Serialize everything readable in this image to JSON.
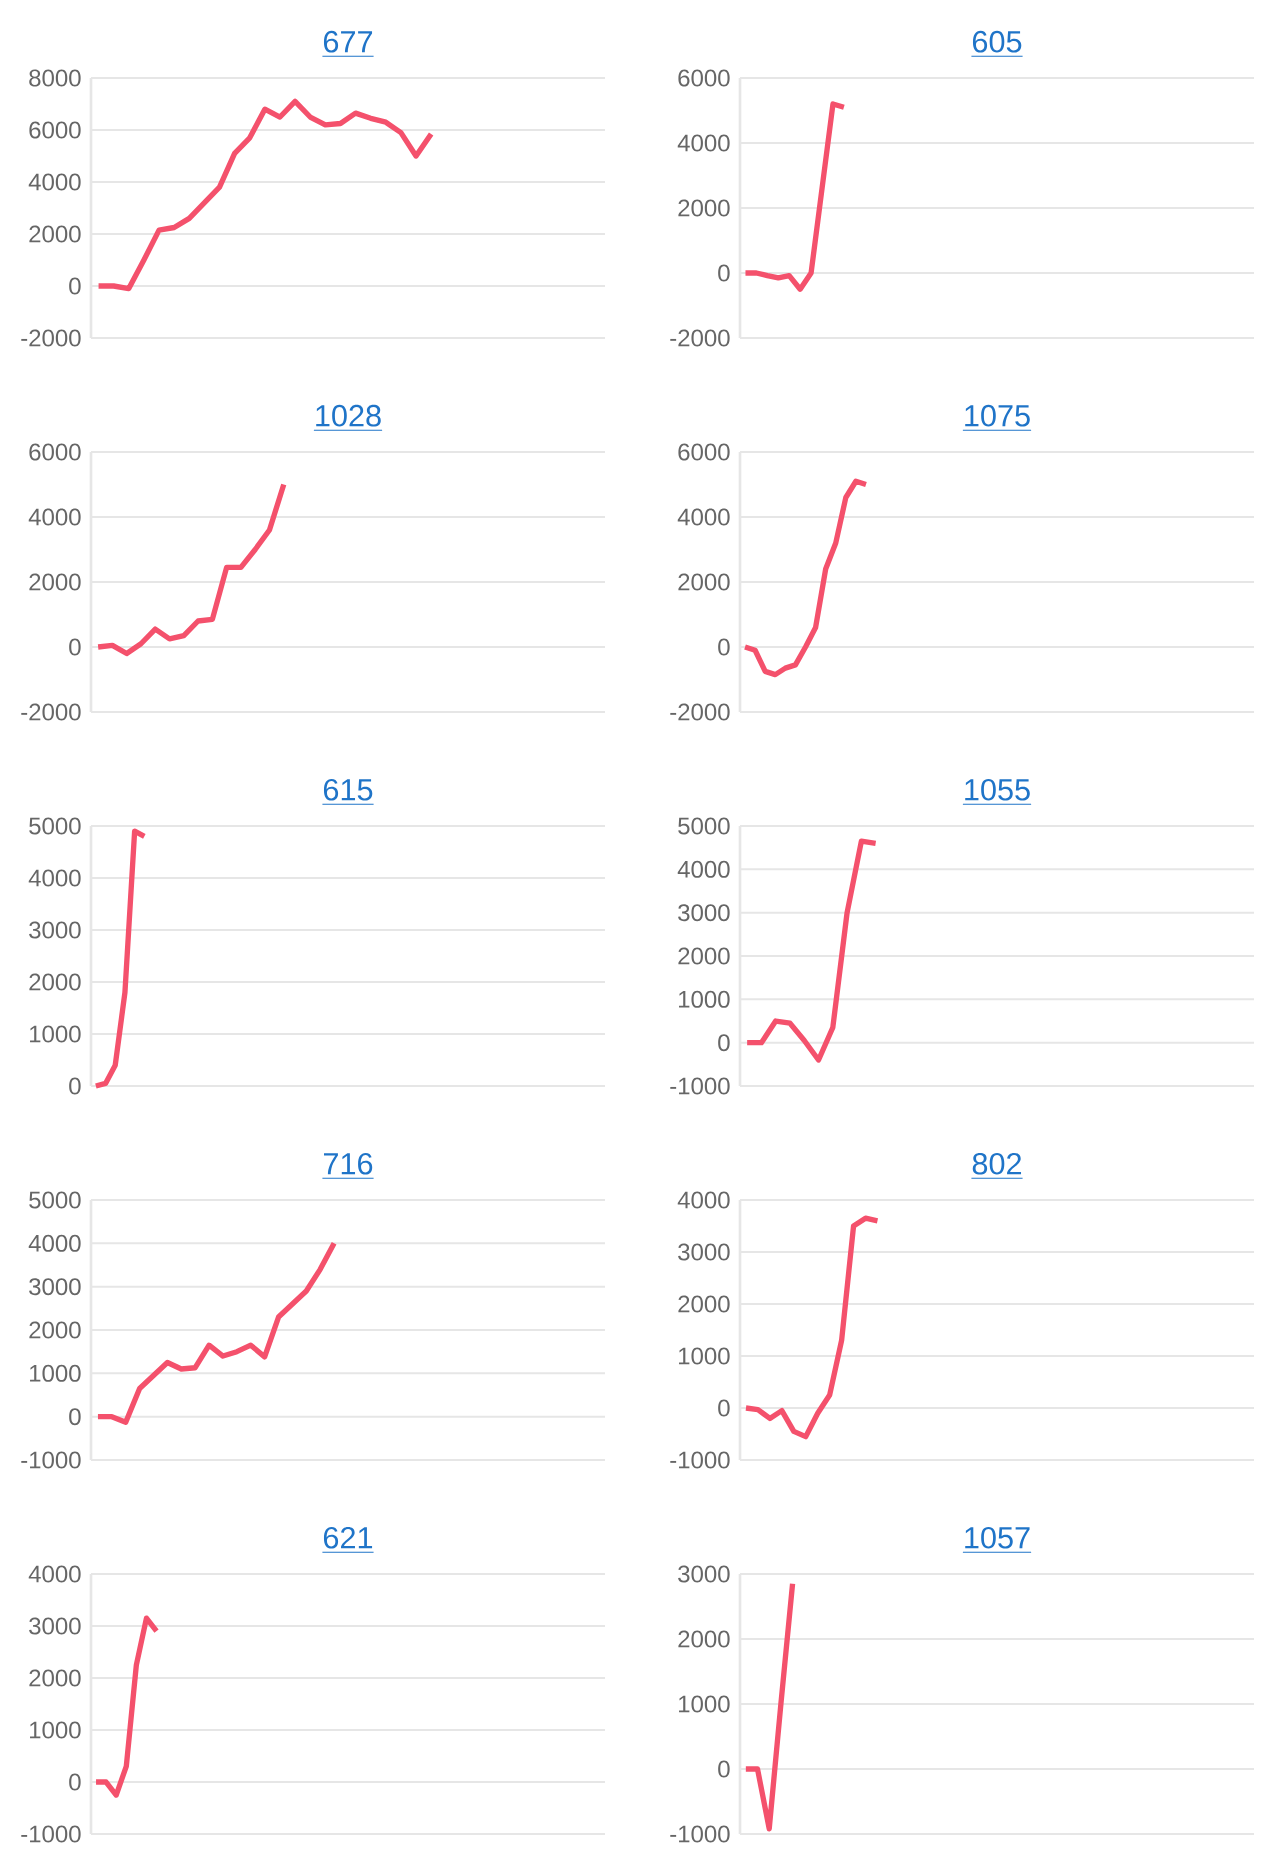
{
  "chart_data": [
    {
      "type": "line",
      "title": "677",
      "categories": [
        null,
        null,
        null,
        null,
        null,
        null,
        null,
        null,
        null,
        null,
        null,
        null,
        null,
        null,
        null,
        null,
        null,
        null,
        null,
        null,
        null,
        null,
        null,
        null,
        null,
        null,
        null,
        null,
        null,
        null,
        null,
        null,
        null,
        null
      ],
      "values": [
        0,
        0,
        -100,
        1000,
        2150,
        2250,
        2600,
        3200,
        3800,
        5100,
        5700,
        6800,
        6500,
        7100,
        6500,
        6200,
        6250,
        6650,
        6450,
        6300,
        5900,
        5000,
        5850,
        null,
        null,
        null,
        null,
        null,
        null,
        null,
        null,
        null,
        null,
        null
      ],
      "color": "#f4516c",
      "ylim": [
        -2000,
        8000
      ],
      "yticks": [
        -2000,
        0,
        2000,
        4000,
        6000,
        8000
      ],
      "grid": "y",
      "tick_labels": "y"
    },
    {
      "type": "line",
      "title": "605",
      "categories": [
        null,
        null,
        null,
        null,
        null,
        null,
        null,
        null,
        null,
        null,
        null,
        null,
        null,
        null,
        null,
        null,
        null,
        null,
        null,
        null,
        null,
        null,
        null,
        null,
        null,
        null,
        null,
        null,
        null,
        null,
        null,
        null,
        null,
        null,
        null,
        null,
        null,
        null,
        null,
        null,
        null,
        null,
        null,
        null,
        null,
        null,
        null
      ],
      "values": [
        0,
        0,
        -80,
        -150,
        -80,
        -500,
        0,
        2600,
        5200,
        5100,
        null,
        null,
        null,
        null,
        null,
        null,
        null,
        null,
        null,
        null,
        null,
        null,
        null,
        null,
        null,
        null,
        null,
        null,
        null,
        null,
        null,
        null,
        null,
        null,
        null,
        null,
        null,
        null,
        null,
        null,
        null,
        null,
        null,
        null,
        null,
        null,
        null
      ],
      "color": "#f4516c",
      "ylim": [
        -2000,
        6000
      ],
      "yticks": [
        -2000,
        0,
        2000,
        4000,
        6000
      ],
      "grid": "y",
      "tick_labels": "y"
    },
    {
      "type": "line",
      "title": "1028",
      "categories": [
        null,
        null,
        null,
        null,
        null,
        null,
        null,
        null,
        null,
        null,
        null,
        null,
        null,
        null,
        null,
        null,
        null,
        null,
        null,
        null,
        null,
        null,
        null,
        null,
        null,
        null,
        null,
        null,
        null,
        null,
        null,
        null,
        null,
        null,
        null,
        null
      ],
      "values": [
        0,
        50,
        -200,
        100,
        550,
        250,
        350,
        800,
        850,
        2450,
        2450,
        3000,
        3600,
        5000,
        null,
        null,
        null,
        null,
        null,
        null,
        null,
        null,
        null,
        null,
        null,
        null,
        null,
        null,
        null,
        null,
        null,
        null,
        null,
        null,
        null,
        null
      ],
      "color": "#f4516c",
      "ylim": [
        -2000,
        6000
      ],
      "yticks": [
        -2000,
        0,
        2000,
        4000,
        6000
      ],
      "grid": "y",
      "tick_labels": "y"
    },
    {
      "type": "line",
      "title": "1075",
      "categories": [
        null,
        null,
        null,
        null,
        null,
        null,
        null,
        null,
        null,
        null,
        null,
        null,
        null,
        null,
        null,
        null,
        null,
        null,
        null,
        null,
        null,
        null,
        null,
        null,
        null,
        null,
        null,
        null,
        null,
        null,
        null,
        null,
        null,
        null,
        null,
        null,
        null,
        null,
        null,
        null,
        null,
        null,
        null,
        null,
        null,
        null,
        null,
        null,
        null,
        null,
        null
      ],
      "values": [
        0,
        -100,
        -750,
        -850,
        -650,
        -550,
        0,
        600,
        2400,
        3200,
        4600,
        5100,
        5000,
        null,
        null,
        null,
        null,
        null,
        null,
        null,
        null,
        null,
        null,
        null,
        null,
        null,
        null,
        null,
        null,
        null,
        null,
        null,
        null,
        null,
        null,
        null,
        null,
        null,
        null,
        null,
        null,
        null,
        null,
        null,
        null,
        null,
        null,
        null,
        null,
        null,
        null
      ],
      "color": "#f4516c",
      "ylim": [
        -2000,
        6000
      ],
      "yticks": [
        -2000,
        0,
        2000,
        4000,
        6000
      ],
      "grid": "y",
      "tick_labels": "y"
    },
    {
      "type": "line",
      "title": "615",
      "categories": [
        null,
        null,
        null,
        null,
        null,
        null,
        null,
        null,
        null,
        null,
        null,
        null,
        null,
        null,
        null,
        null,
        null,
        null,
        null,
        null,
        null,
        null,
        null,
        null,
        null,
        null,
        null,
        null,
        null,
        null,
        null,
        null,
        null,
        null,
        null,
        null,
        null,
        null,
        null,
        null,
        null,
        null,
        null,
        null,
        null,
        null,
        null,
        null,
        null,
        null,
        null,
        null,
        null
      ],
      "values": [
        0,
        50,
        400,
        1800,
        4900,
        4800,
        null,
        null,
        null,
        null,
        null,
        null,
        null,
        null,
        null,
        null,
        null,
        null,
        null,
        null,
        null,
        null,
        null,
        null,
        null,
        null,
        null,
        null,
        null,
        null,
        null,
        null,
        null,
        null,
        null,
        null,
        null,
        null,
        null,
        null,
        null,
        null,
        null,
        null,
        null,
        null,
        null,
        null,
        null,
        null,
        null,
        null,
        null
      ],
      "color": "#f4516c",
      "ylim": [
        0,
        5000
      ],
      "yticks": [
        0,
        1000,
        2000,
        3000,
        4000,
        5000
      ],
      "grid": "y",
      "tick_labels": "y"
    },
    {
      "type": "line",
      "title": "1055",
      "categories": [
        null,
        null,
        null,
        null,
        null,
        null,
        null,
        null,
        null,
        null,
        null,
        null,
        null,
        null,
        null,
        null,
        null,
        null,
        null,
        null,
        null,
        null,
        null,
        null,
        null,
        null,
        null,
        null,
        null,
        null,
        null,
        null,
        null,
        null,
        null,
        null
      ],
      "values": [
        0,
        0,
        500,
        450,
        50,
        -400,
        350,
        3000,
        4650,
        4600,
        null,
        null,
        null,
        null,
        null,
        null,
        null,
        null,
        null,
        null,
        null,
        null,
        null,
        null,
        null,
        null,
        null,
        null,
        null,
        null,
        null,
        null,
        null,
        null,
        null,
        null
      ],
      "color": "#f4516c",
      "ylim": [
        -1000,
        5000
      ],
      "yticks": [
        -1000,
        0,
        1000,
        2000,
        3000,
        4000,
        5000
      ],
      "grid": "y",
      "tick_labels": "y"
    },
    {
      "type": "line",
      "title": "716",
      "categories": [
        null,
        null,
        null,
        null,
        null,
        null,
        null,
        null,
        null,
        null,
        null,
        null,
        null,
        null,
        null,
        null,
        null,
        null,
        null,
        null,
        null,
        null,
        null,
        null,
        null,
        null,
        null,
        null,
        null,
        null,
        null,
        null,
        null,
        null,
        null,
        null,
        null
      ],
      "values": [
        0,
        0,
        -130,
        650,
        950,
        1250,
        1100,
        1130,
        1650,
        1400,
        1500,
        1650,
        1380,
        2300,
        2600,
        2900,
        3400,
        4000,
        null,
        null,
        null,
        null,
        null,
        null,
        null,
        null,
        null,
        null,
        null,
        null,
        null,
        null,
        null,
        null,
        null,
        null,
        null
      ],
      "color": "#f4516c",
      "ylim": [
        -1000,
        5000
      ],
      "yticks": [
        -1000,
        0,
        1000,
        2000,
        3000,
        4000,
        5000
      ],
      "grid": "y",
      "tick_labels": "y"
    },
    {
      "type": "line",
      "title": "802",
      "categories": [
        null,
        null,
        null,
        null,
        null,
        null,
        null,
        null,
        null,
        null,
        null,
        null,
        null,
        null,
        null,
        null,
        null,
        null,
        null,
        null,
        null,
        null,
        null,
        null,
        null,
        null,
        null,
        null,
        null,
        null,
        null,
        null,
        null,
        null,
        null,
        null,
        null,
        null,
        null,
        null,
        null,
        null,
        null
      ],
      "values": [
        0,
        -30,
        -200,
        -50,
        -450,
        -550,
        -100,
        250,
        1300,
        3500,
        3650,
        3600,
        null,
        null,
        null,
        null,
        null,
        null,
        null,
        null,
        null,
        null,
        null,
        null,
        null,
        null,
        null,
        null,
        null,
        null,
        null,
        null,
        null,
        null,
        null,
        null,
        null,
        null,
        null,
        null,
        null,
        null,
        null
      ],
      "color": "#f4516c",
      "ylim": [
        -1000,
        4000
      ],
      "yticks": [
        -1000,
        0,
        1000,
        2000,
        3000,
        4000
      ],
      "grid": "y",
      "tick_labels": "y"
    },
    {
      "type": "line",
      "title": "621",
      "categories": [
        null,
        null,
        null,
        null,
        null,
        null,
        null,
        null,
        null,
        null,
        null,
        null,
        null,
        null,
        null,
        null,
        null,
        null,
        null,
        null,
        null,
        null,
        null,
        null,
        null,
        null,
        null,
        null,
        null,
        null,
        null,
        null,
        null,
        null,
        null,
        null,
        null,
        null,
        null,
        null,
        null,
        null,
        null,
        null,
        null,
        null,
        null,
        null,
        null,
        null,
        null
      ],
      "values": [
        0,
        0,
        -250,
        300,
        2250,
        3150,
        2900,
        null,
        null,
        null,
        null,
        null,
        null,
        null,
        null,
        null,
        null,
        null,
        null,
        null,
        null,
        null,
        null,
        null,
        null,
        null,
        null,
        null,
        null,
        null,
        null,
        null,
        null,
        null,
        null,
        null,
        null,
        null,
        null,
        null,
        null,
        null,
        null,
        null,
        null,
        null,
        null,
        null,
        null,
        null,
        null
      ],
      "color": "#f4516c",
      "ylim": [
        -1000,
        4000
      ],
      "yticks": [
        -1000,
        0,
        1000,
        2000,
        3000,
        4000
      ],
      "grid": "y",
      "tick_labels": "y"
    },
    {
      "type": "line",
      "title": "1057",
      "categories": [
        null,
        null,
        null,
        null,
        null,
        null,
        null,
        null,
        null,
        null,
        null,
        null,
        null,
        null,
        null,
        null,
        null,
        null,
        null,
        null,
        null,
        null,
        null,
        null,
        null,
        null,
        null,
        null,
        null,
        null,
        null,
        null,
        null,
        null,
        null,
        null,
        null,
        null,
        null,
        null,
        null,
        null,
        null,
        null
      ],
      "values": [
        0,
        0,
        -920,
        1000,
        2850,
        null,
        null,
        null,
        null,
        null,
        null,
        null,
        null,
        null,
        null,
        null,
        null,
        null,
        null,
        null,
        null,
        null,
        null,
        null,
        null,
        null,
        null,
        null,
        null,
        null,
        null,
        null,
        null,
        null,
        null,
        null,
        null,
        null,
        null,
        null,
        null,
        null,
        null,
        null
      ],
      "color": "#f4516c",
      "ylim": [
        -1000,
        3000
      ],
      "yticks": [
        -1000,
        0,
        1000,
        2000,
        3000
      ],
      "grid": "y",
      "tick_labels": "y"
    }
  ]
}
